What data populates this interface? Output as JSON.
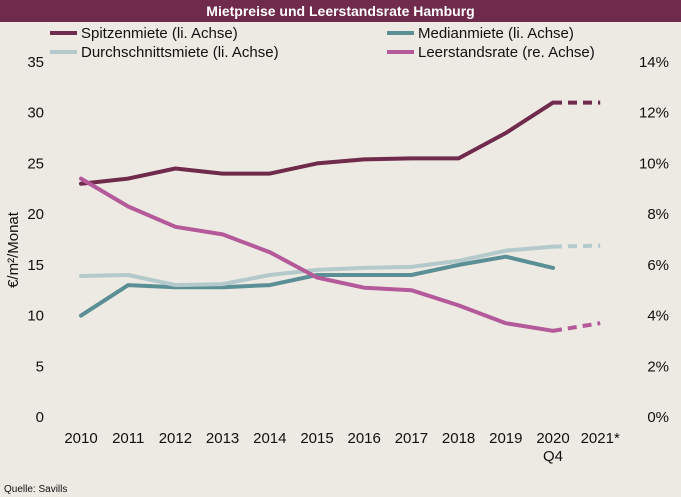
{
  "chart_data": {
    "type": "line",
    "title": "Mietpreise und Leerstandsrate Hamburg",
    "ylabel": "€/m²/Monat",
    "ylim": [
      0,
      35
    ],
    "y_ticks": [
      "0",
      "5",
      "10",
      "15",
      "20",
      "25",
      "30",
      "35"
    ],
    "y2lim": [
      0,
      14
    ],
    "y2_ticks": [
      "0%",
      "2%",
      "4%",
      "6%",
      "8%",
      "10%",
      "12%",
      "14%"
    ],
    "categories": [
      "2010",
      "2011",
      "2012",
      "2013",
      "2014",
      "2015",
      "2016",
      "2017",
      "2018",
      "2019",
      "2020",
      "2021*"
    ],
    "category_sublabels": [
      "",
      "",
      "",
      "",
      "",
      "",
      "",
      "",
      "",
      "",
      "Q4",
      ""
    ],
    "legend_placement": "top",
    "series": [
      {
        "name": "Spitzenmiete (li. Achse)",
        "axis": "left",
        "color": "#6f2a4c",
        "values": [
          23.0,
          23.5,
          24.5,
          24.0,
          24.0,
          25.0,
          25.4,
          25.5,
          25.5,
          28.0,
          31.0,
          31.0
        ],
        "dashed_from": 10
      },
      {
        "name": "Medianmiete (li. Achse)",
        "axis": "left",
        "color": "#5b8f96",
        "values": [
          10.0,
          13.0,
          12.8,
          12.8,
          13.0,
          14.0,
          14.0,
          14.0,
          15.0,
          15.8,
          14.7,
          null
        ],
        "dashed_from": null
      },
      {
        "name": "Durchschnittsmiete (li. Achse)",
        "axis": "left",
        "color": "#b4c9cb",
        "values": [
          13.9,
          14.0,
          13.0,
          13.1,
          14.0,
          14.5,
          14.7,
          14.8,
          15.4,
          16.4,
          16.8,
          16.9
        ],
        "dashed_from": 10
      },
      {
        "name": "Leerstandsrate (re. Achse)",
        "axis": "right",
        "color": "#b45a9b",
        "values": [
          9.4,
          8.3,
          7.5,
          7.2,
          6.5,
          5.5,
          5.1,
          5.0,
          4.4,
          3.7,
          3.4,
          3.7
        ],
        "dashed_from": 10
      }
    ],
    "source": "Quelle: Savills"
  }
}
